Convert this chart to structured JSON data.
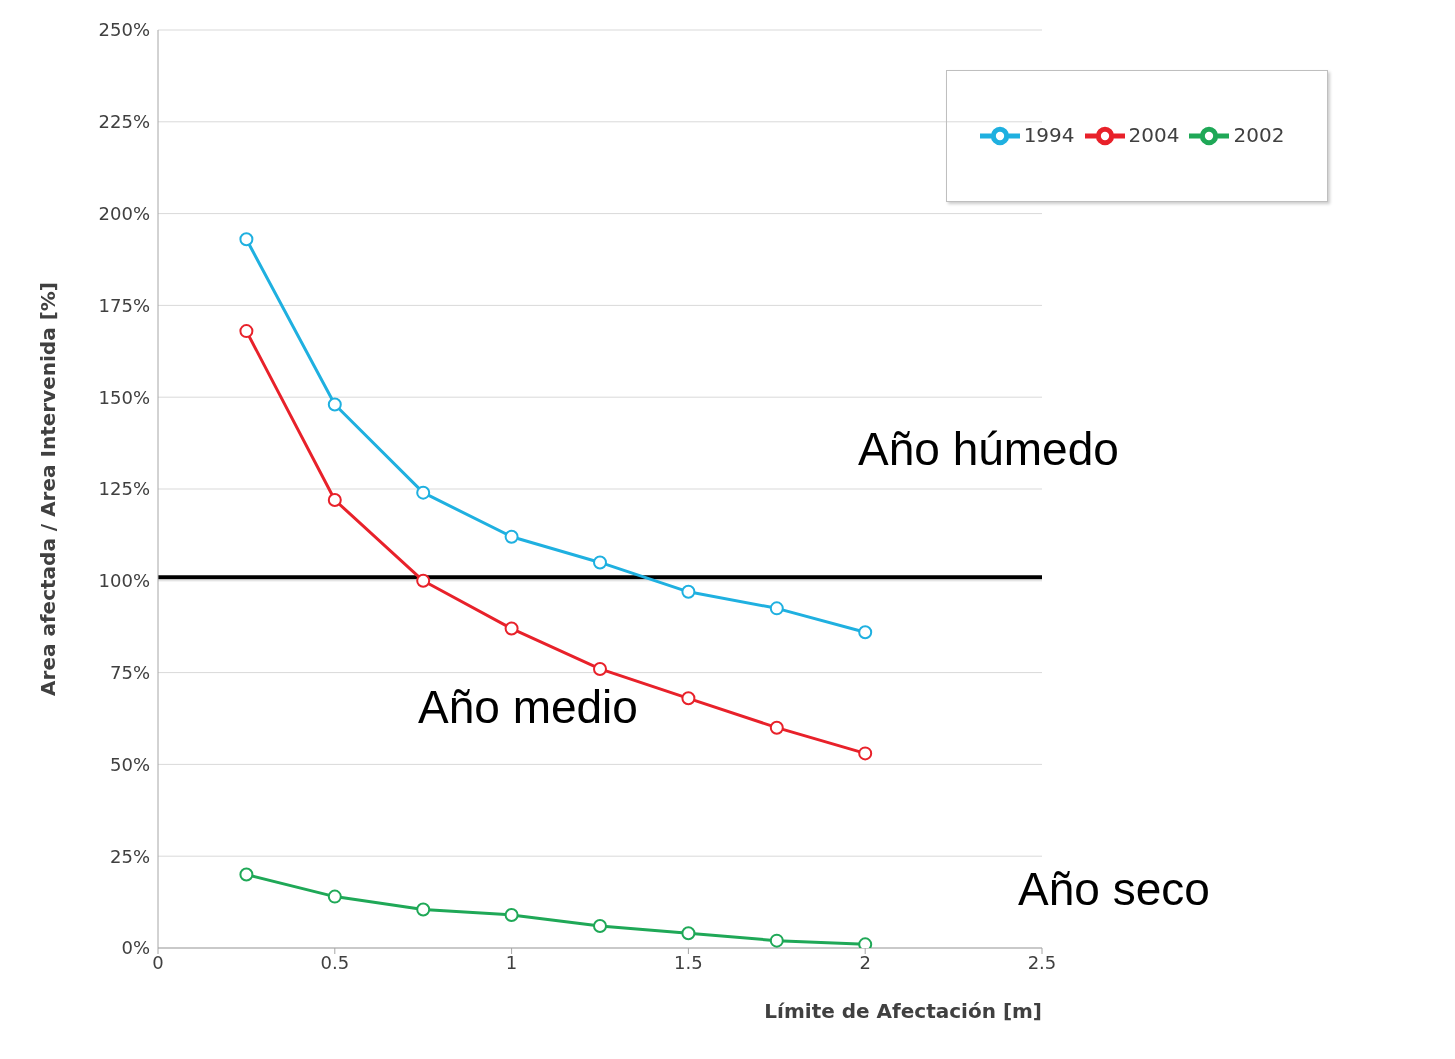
{
  "chart_data": {
    "type": "line",
    "xlabel": "Límite de Afectación [m]",
    "ylabel": "Area afectada / Area Intervenida [%]",
    "x": [
      0.25,
      0.5,
      0.75,
      1,
      1.25,
      1.5,
      1.75,
      2
    ],
    "series": [
      {
        "name": "1994",
        "color": "#1fb0e0",
        "values": [
          193,
          148,
          124,
          112,
          105,
          97,
          92.5,
          86
        ]
      },
      {
        "name": "2004",
        "color": "#e8212a",
        "values": [
          168,
          122,
          100,
          87,
          76,
          68,
          60,
          53
        ]
      },
      {
        "name": "2002",
        "color": "#1fa857",
        "values": [
          20,
          14,
          10.5,
          9,
          6,
          4,
          2,
          1
        ]
      }
    ],
    "xlim": [
      0,
      2.5
    ],
    "xticks": [
      0,
      0.5,
      1,
      1.5,
      2,
      2.5
    ],
    "ylim": [
      0,
      250
    ],
    "yticks": [
      {
        "value": 0,
        "label": "0%"
      },
      {
        "value": 25,
        "label": "25%"
      },
      {
        "value": 50,
        "label": "50%"
      },
      {
        "value": 75,
        "label": "75%"
      },
      {
        "value": 100,
        "label": "100%"
      },
      {
        "value": 125,
        "label": "125%"
      },
      {
        "value": 150,
        "label": "150%"
      },
      {
        "value": 175,
        "label": "175%"
      },
      {
        "value": 200,
        "label": "200%"
      },
      {
        "value": 225,
        "label": "225%"
      },
      {
        "value": 250,
        "label": "250%"
      }
    ],
    "ref_lines": [
      {
        "axis": "y",
        "value": 101,
        "color": "#000000"
      }
    ],
    "annotations": [
      "Año húmedo",
      "Año medio",
      "Año seco"
    ],
    "grid": "y",
    "legend": "top right",
    "marker": "circle",
    "line_style": "solid"
  }
}
